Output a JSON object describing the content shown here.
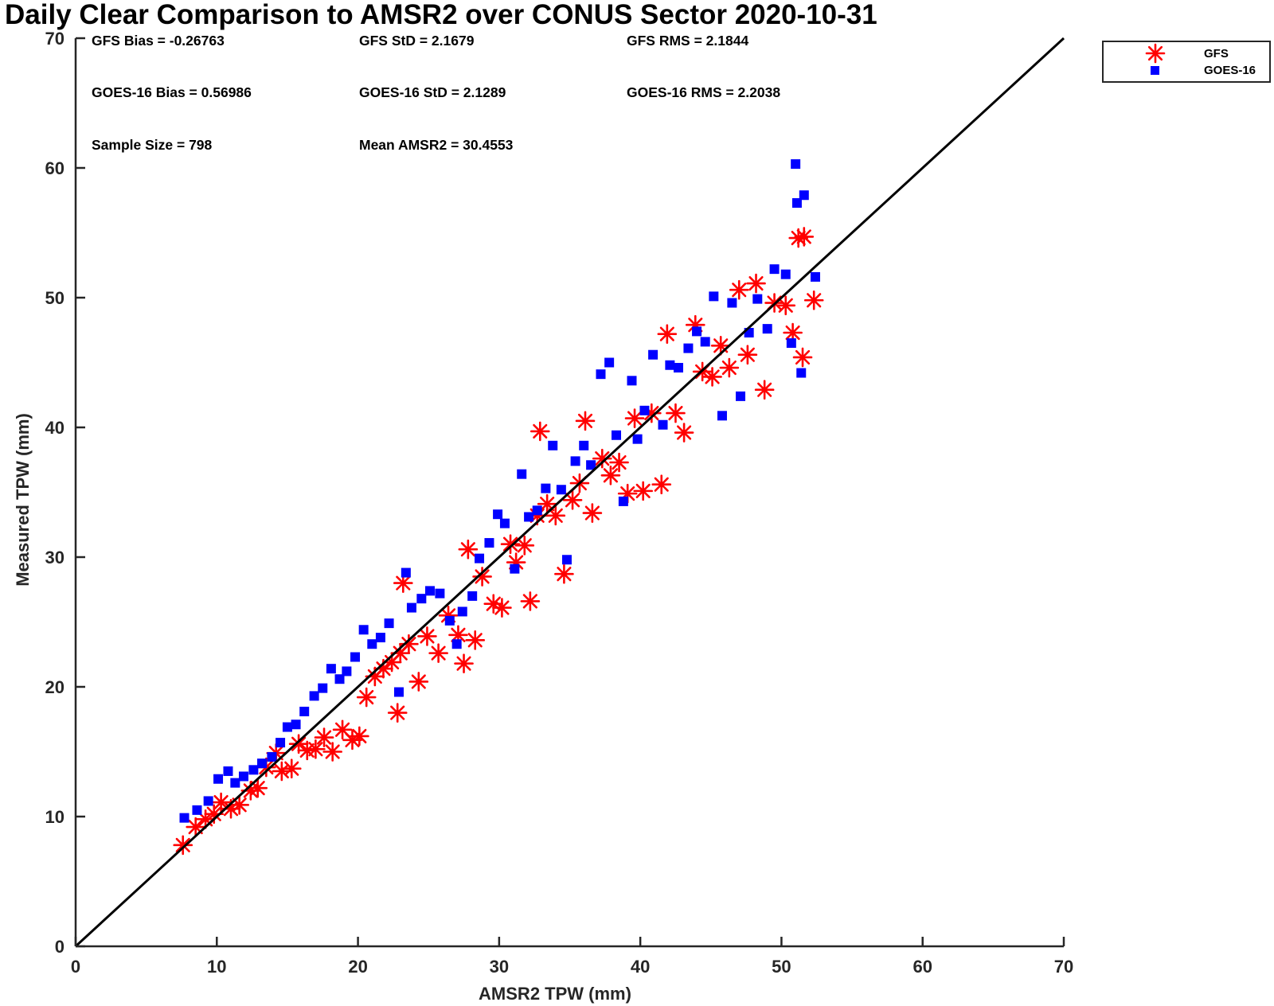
{
  "chart_data": {
    "type": "scatter",
    "title": "Daily Clear Comparison to AMSR2 over CONUS Sector 2020-10-31",
    "xlabel": "AMSR2 TPW (mm)",
    "ylabel": "Measured TPW (mm)",
    "xlim": [
      0,
      70
    ],
    "ylim": [
      0,
      70
    ],
    "xticks": [
      "0",
      "10",
      "20",
      "30",
      "40",
      "50",
      "60",
      "70"
    ],
    "yticks": [
      "0",
      "10",
      "20",
      "30",
      "40",
      "50",
      "60",
      "70"
    ],
    "reference_line": {
      "type": "one-to-one",
      "color": "#000000"
    },
    "legend": {
      "placement": "outside-top-right",
      "entries": [
        "GFS",
        "GOES-16"
      ]
    },
    "stats": [
      "GFS Bias = -0.26763",
      "GFS StD = 2.1679",
      "GFS RMS = 2.1844",
      "GOES-16 Bias = 0.56986",
      "GOES-16 StD = 2.1289",
      "GOES-16 RMS = 2.2038",
      "Sample Size = 798",
      "Mean AMSR2 = 30.4553"
    ],
    "series": [
      {
        "name": "GFS",
        "marker": "asterisk",
        "color": "#ff0000",
        "points": [
          [
            7.6,
            7.8
          ],
          [
            8.5,
            9.2
          ],
          [
            9.2,
            9.8
          ],
          [
            9.8,
            10.2
          ],
          [
            10.3,
            11.1
          ],
          [
            11.0,
            10.6
          ],
          [
            11.6,
            10.9
          ],
          [
            12.4,
            12.0
          ],
          [
            12.9,
            12.2
          ],
          [
            13.5,
            13.8
          ],
          [
            14.2,
            14.9
          ],
          [
            14.6,
            13.5
          ],
          [
            15.3,
            13.7
          ],
          [
            15.8,
            15.6
          ],
          [
            16.4,
            15.1
          ],
          [
            17.0,
            15.2
          ],
          [
            17.6,
            16.1
          ],
          [
            18.2,
            15.0
          ],
          [
            18.9,
            16.7
          ],
          [
            19.6,
            15.9
          ],
          [
            20.1,
            16.2
          ],
          [
            20.6,
            19.2
          ],
          [
            21.2,
            20.8
          ],
          [
            21.8,
            21.4
          ],
          [
            22.4,
            21.9
          ],
          [
            23.0,
            22.6
          ],
          [
            22.8,
            18.0
          ],
          [
            23.2,
            28.0
          ],
          [
            23.6,
            23.3
          ],
          [
            24.3,
            20.4
          ],
          [
            24.9,
            23.9
          ],
          [
            25.7,
            22.6
          ],
          [
            26.4,
            25.5
          ],
          [
            27.1,
            24.0
          ],
          [
            27.5,
            21.8
          ],
          [
            27.8,
            30.6
          ],
          [
            28.3,
            23.6
          ],
          [
            28.8,
            28.5
          ],
          [
            29.6,
            26.4
          ],
          [
            30.2,
            26.1
          ],
          [
            30.8,
            31.0
          ],
          [
            31.2,
            29.6
          ],
          [
            31.8,
            30.9
          ],
          [
            32.2,
            26.6
          ],
          [
            32.7,
            33.2
          ],
          [
            32.9,
            39.7
          ],
          [
            33.4,
            34.1
          ],
          [
            34.0,
            33.2
          ],
          [
            34.6,
            28.7
          ],
          [
            35.2,
            34.4
          ],
          [
            35.7,
            35.7
          ],
          [
            36.1,
            40.5
          ],
          [
            36.6,
            33.4
          ],
          [
            37.3,
            37.6
          ],
          [
            37.9,
            36.3
          ],
          [
            38.5,
            37.3
          ],
          [
            39.1,
            34.9
          ],
          [
            39.6,
            40.7
          ],
          [
            40.2,
            35.1
          ],
          [
            40.8,
            41.1
          ],
          [
            41.5,
            35.6
          ],
          [
            41.9,
            47.2
          ],
          [
            42.5,
            41.1
          ],
          [
            43.1,
            39.6
          ],
          [
            43.9,
            47.9
          ],
          [
            44.4,
            44.3
          ],
          [
            45.1,
            43.9
          ],
          [
            45.7,
            46.3
          ],
          [
            46.3,
            44.6
          ],
          [
            47.0,
            50.6
          ],
          [
            47.6,
            45.6
          ],
          [
            48.2,
            51.1
          ],
          [
            48.8,
            42.9
          ],
          [
            49.5,
            49.6
          ],
          [
            50.3,
            49.4
          ],
          [
            50.8,
            47.3
          ],
          [
            51.2,
            54.6
          ],
          [
            51.6,
            54.7
          ],
          [
            51.5,
            45.4
          ],
          [
            52.3,
            49.8
          ]
        ]
      },
      {
        "name": "GOES-16",
        "marker": "square",
        "color": "#0000ff",
        "points": [
          [
            7.7,
            9.9
          ],
          [
            8.6,
            10.5
          ],
          [
            9.4,
            11.2
          ],
          [
            10.1,
            12.9
          ],
          [
            10.8,
            13.5
          ],
          [
            11.3,
            12.6
          ],
          [
            11.9,
            13.1
          ],
          [
            12.6,
            13.6
          ],
          [
            13.2,
            14.1
          ],
          [
            13.9,
            14.6
          ],
          [
            14.5,
            15.7
          ],
          [
            15.0,
            16.9
          ],
          [
            15.6,
            17.1
          ],
          [
            16.2,
            18.1
          ],
          [
            16.9,
            19.3
          ],
          [
            17.5,
            19.9
          ],
          [
            18.1,
            21.4
          ],
          [
            18.7,
            20.6
          ],
          [
            19.2,
            21.2
          ],
          [
            19.8,
            22.3
          ],
          [
            20.4,
            24.4
          ],
          [
            21.0,
            23.3
          ],
          [
            21.6,
            23.8
          ],
          [
            22.2,
            24.9
          ],
          [
            22.9,
            19.6
          ],
          [
            23.4,
            28.8
          ],
          [
            23.8,
            26.1
          ],
          [
            24.5,
            26.8
          ],
          [
            25.1,
            27.4
          ],
          [
            25.8,
            27.2
          ],
          [
            26.5,
            25.1
          ],
          [
            27.0,
            23.3
          ],
          [
            27.4,
            25.8
          ],
          [
            28.1,
            27.0
          ],
          [
            28.6,
            29.9
          ],
          [
            29.3,
            31.1
          ],
          [
            29.9,
            33.3
          ],
          [
            30.4,
            32.6
          ],
          [
            31.1,
            29.1
          ],
          [
            31.6,
            36.4
          ],
          [
            32.1,
            33.1
          ],
          [
            32.7,
            33.6
          ],
          [
            33.3,
            35.3
          ],
          [
            33.8,
            38.6
          ],
          [
            34.4,
            35.2
          ],
          [
            34.8,
            29.8
          ],
          [
            35.4,
            37.4
          ],
          [
            36.0,
            38.6
          ],
          [
            36.5,
            37.1
          ],
          [
            37.2,
            44.1
          ],
          [
            37.8,
            45.0
          ],
          [
            38.3,
            39.4
          ],
          [
            38.8,
            34.3
          ],
          [
            39.4,
            43.6
          ],
          [
            39.8,
            39.1
          ],
          [
            40.3,
            41.3
          ],
          [
            40.9,
            45.6
          ],
          [
            41.6,
            40.2
          ],
          [
            42.1,
            44.8
          ],
          [
            42.7,
            44.6
          ],
          [
            43.4,
            46.1
          ],
          [
            44.0,
            47.4
          ],
          [
            44.6,
            46.6
          ],
          [
            45.2,
            50.1
          ],
          [
            45.8,
            40.9
          ],
          [
            46.5,
            49.6
          ],
          [
            47.1,
            42.4
          ],
          [
            47.7,
            47.3
          ],
          [
            48.3,
            49.9
          ],
          [
            49.0,
            47.6
          ],
          [
            49.5,
            52.2
          ],
          [
            50.3,
            51.8
          ],
          [
            50.7,
            46.5
          ],
          [
            51.0,
            60.3
          ],
          [
            51.1,
            57.3
          ],
          [
            51.6,
            57.9
          ],
          [
            51.4,
            44.2
          ],
          [
            52.4,
            51.6
          ]
        ]
      }
    ]
  }
}
